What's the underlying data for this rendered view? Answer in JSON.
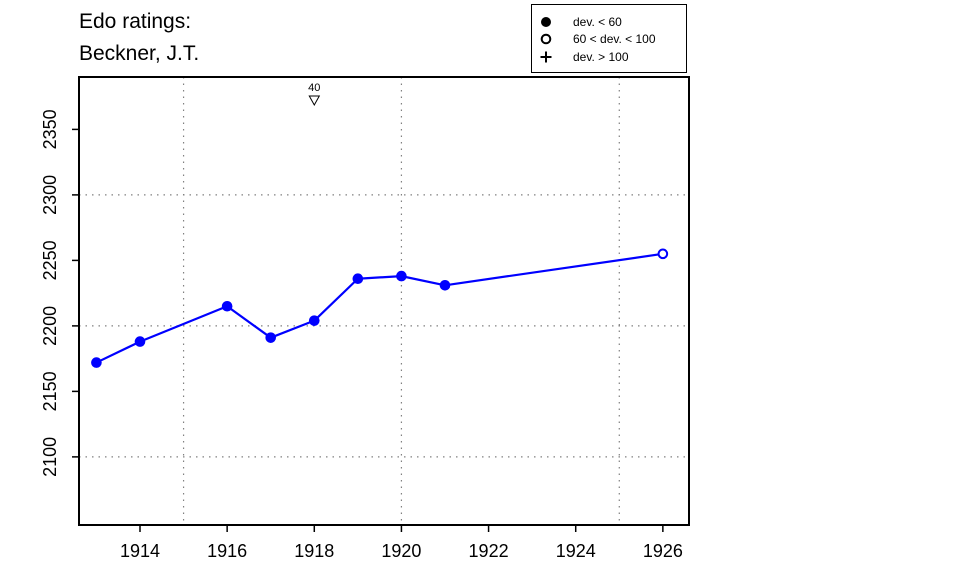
{
  "chart_data": {
    "type": "line",
    "title": [
      "Edo ratings:",
      "Beckner, J.T."
    ],
    "xlabel": "",
    "ylabel": "",
    "xlim": [
      1912.6,
      1926.6
    ],
    "ylim": [
      2048,
      2390
    ],
    "x_ticks": [
      1914,
      1916,
      1918,
      1920,
      1922,
      1924,
      1926
    ],
    "y_ticks": [
      2100,
      2150,
      2200,
      2250,
      2300,
      2350
    ],
    "x_grid": [
      1915,
      1920,
      1925
    ],
    "y_grid": [
      2100,
      2200,
      2300
    ],
    "grid": "dotted",
    "legend_position": "top-right",
    "legend": [
      {
        "symbol": "filled-circle",
        "label": "dev. < 60"
      },
      {
        "symbol": "open-circle",
        "label": "60 < dev. < 100"
      },
      {
        "symbol": "plus",
        "label": "dev. > 100"
      }
    ],
    "series": [
      {
        "color": "#0000ff",
        "points": [
          {
            "x": 1913,
            "y": 2172,
            "marker": "filled"
          },
          {
            "x": 1914,
            "y": 2188,
            "marker": "filled"
          },
          {
            "x": 1916,
            "y": 2215,
            "marker": "filled"
          },
          {
            "x": 1917,
            "y": 2191,
            "marker": "filled"
          },
          {
            "x": 1918,
            "y": 2204,
            "marker": "filled"
          },
          {
            "x": 1919,
            "y": 2236,
            "marker": "filled"
          },
          {
            "x": 1920,
            "y": 2238,
            "marker": "filled"
          },
          {
            "x": 1921,
            "y": 2231,
            "marker": "filled"
          },
          {
            "x": 1926,
            "y": 2255,
            "marker": "open"
          }
        ]
      }
    ],
    "annotations": [
      {
        "x": 1918,
        "label": "40",
        "marker": "down-triangle"
      }
    ]
  }
}
